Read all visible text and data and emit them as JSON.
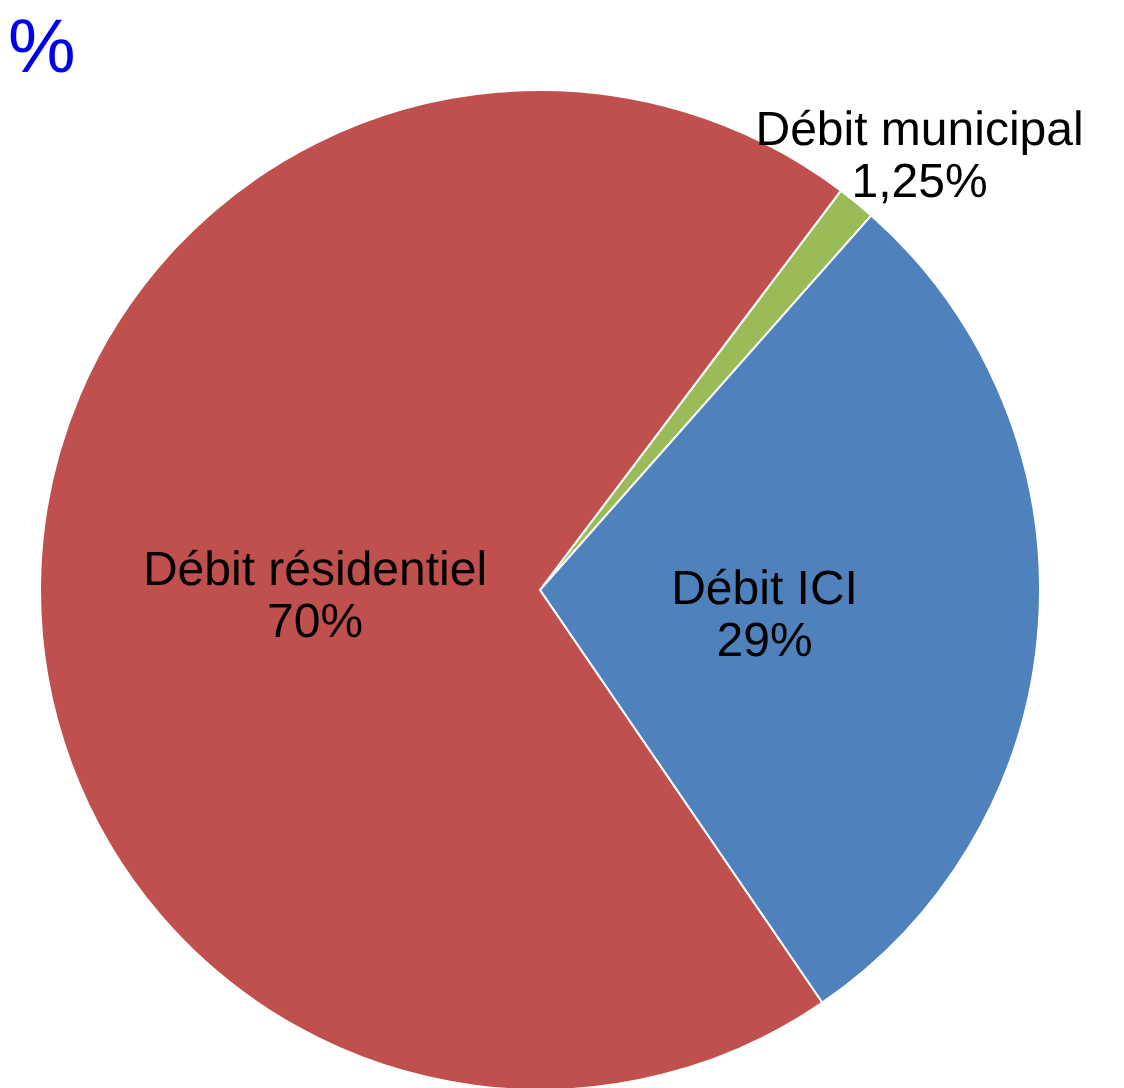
{
  "chart_data": {
    "type": "pie",
    "title": "%",
    "categories": [
      "Débit municipal",
      "Débit ICI",
      "Débit résidentiel"
    ],
    "values": [
      1.25,
      29,
      70
    ],
    "value_labels": [
      "1,25%",
      "29%",
      "70%"
    ],
    "colors": [
      "#9bbb59",
      "#4f81bd",
      "#c0504d"
    ]
  }
}
